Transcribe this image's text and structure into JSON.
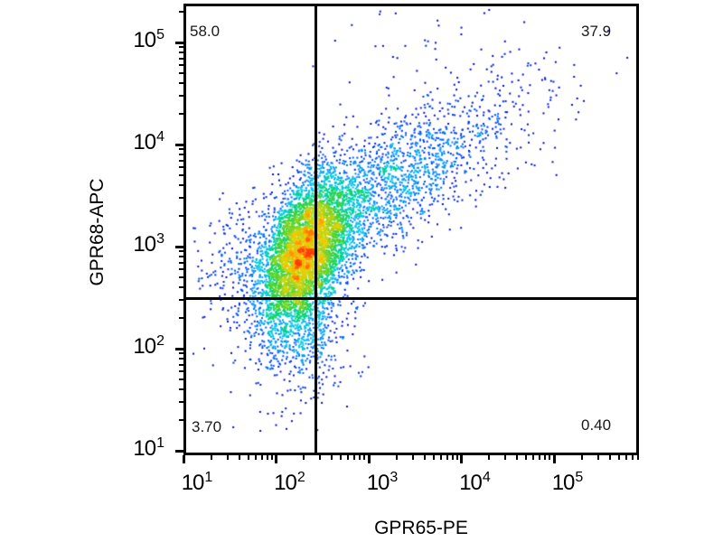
{
  "figure": {
    "background_color": "#ffffff",
    "frame_color": "#000000"
  },
  "chart_data": {
    "type": "scatter",
    "subtype": "flow-cytometry-pseudocolor-dot-plot",
    "title": "",
    "xlabel": "GPR65-PE",
    "ylabel": "GPR68-APC",
    "x_axis": {
      "scale": "log10",
      "min": 10,
      "max": 800000,
      "major_ticks": [
        {
          "value": 10,
          "base": "10",
          "exp": "1"
        },
        {
          "value": 100,
          "base": "10",
          "exp": "2"
        },
        {
          "value": 1000,
          "base": "10",
          "exp": "3"
        },
        {
          "value": 10000,
          "base": "10",
          "exp": "4"
        },
        {
          "value": 100000,
          "base": "10",
          "exp": "5"
        }
      ]
    },
    "y_axis": {
      "scale": "log10",
      "min": 9,
      "max": 235000,
      "major_ticks": [
        {
          "value": 10,
          "base": "10",
          "exp": "1"
        },
        {
          "value": 100,
          "base": "10",
          "exp": "2"
        },
        {
          "value": 1000,
          "base": "10",
          "exp": "3"
        },
        {
          "value": 10000,
          "base": "10",
          "exp": "4"
        },
        {
          "value": 100000,
          "base": "10",
          "exp": "5"
        }
      ]
    },
    "quadrant_gates": {
      "x_value": 270,
      "y_value": 310
    },
    "quadrants": {
      "upper_left": {
        "percent": "58.0"
      },
      "upper_right": {
        "percent": "37.9"
      },
      "lower_left": {
        "percent": "3.70"
      },
      "lower_right": {
        "percent": "0.40"
      }
    },
    "seed": 42,
    "populations": [
      {
        "name": "main-core",
        "center_log": [
          2.32,
          2.95
        ],
        "sigma_log": [
          0.26,
          0.4
        ],
        "rho": 0.5,
        "n": 5200
      },
      {
        "name": "diagonal-arm",
        "center_log": [
          3.15,
          3.55
        ],
        "sigma_log": [
          0.55,
          0.42
        ],
        "rho": 0.72,
        "n": 1500
      },
      {
        "name": "far-arm",
        "center_log": [
          4.25,
          4.15
        ],
        "sigma_log": [
          0.55,
          0.45
        ],
        "rho": 0.55,
        "n": 220
      },
      {
        "name": "below-gate-tail",
        "center_log": [
          2.36,
          2.16
        ],
        "sigma_log": [
          0.22,
          0.31
        ],
        "rho": 0.25,
        "n": 430
      },
      {
        "name": "left-fan",
        "center_log": [
          1.75,
          2.8
        ],
        "sigma_log": [
          0.34,
          0.34
        ],
        "rho": 0.1,
        "n": 380
      },
      {
        "name": "top-spray",
        "center_log": [
          3.45,
          4.85
        ],
        "sigma_log": [
          0.5,
          0.32
        ],
        "rho": 0.3,
        "n": 40
      },
      {
        "name": "deep-low",
        "center_log": [
          2.3,
          1.55
        ],
        "sigma_log": [
          0.3,
          0.25
        ],
        "rho": 0.1,
        "n": 18
      }
    ],
    "density_colormap": [
      {
        "t": 0.0,
        "color": "#14144b"
      },
      {
        "t": 0.13,
        "color": "#0000d2"
      },
      {
        "t": 0.27,
        "color": "#0064ff"
      },
      {
        "t": 0.41,
        "color": "#00c8f0"
      },
      {
        "t": 0.54,
        "color": "#00d278"
      },
      {
        "t": 0.65,
        "color": "#50d228"
      },
      {
        "t": 0.76,
        "color": "#b4d216"
      },
      {
        "t": 0.85,
        "color": "#e8d200"
      },
      {
        "t": 0.92,
        "color": "#ffa000"
      },
      {
        "t": 1.0,
        "color": "#ff3c00"
      }
    ],
    "legend": null,
    "grid": false
  }
}
